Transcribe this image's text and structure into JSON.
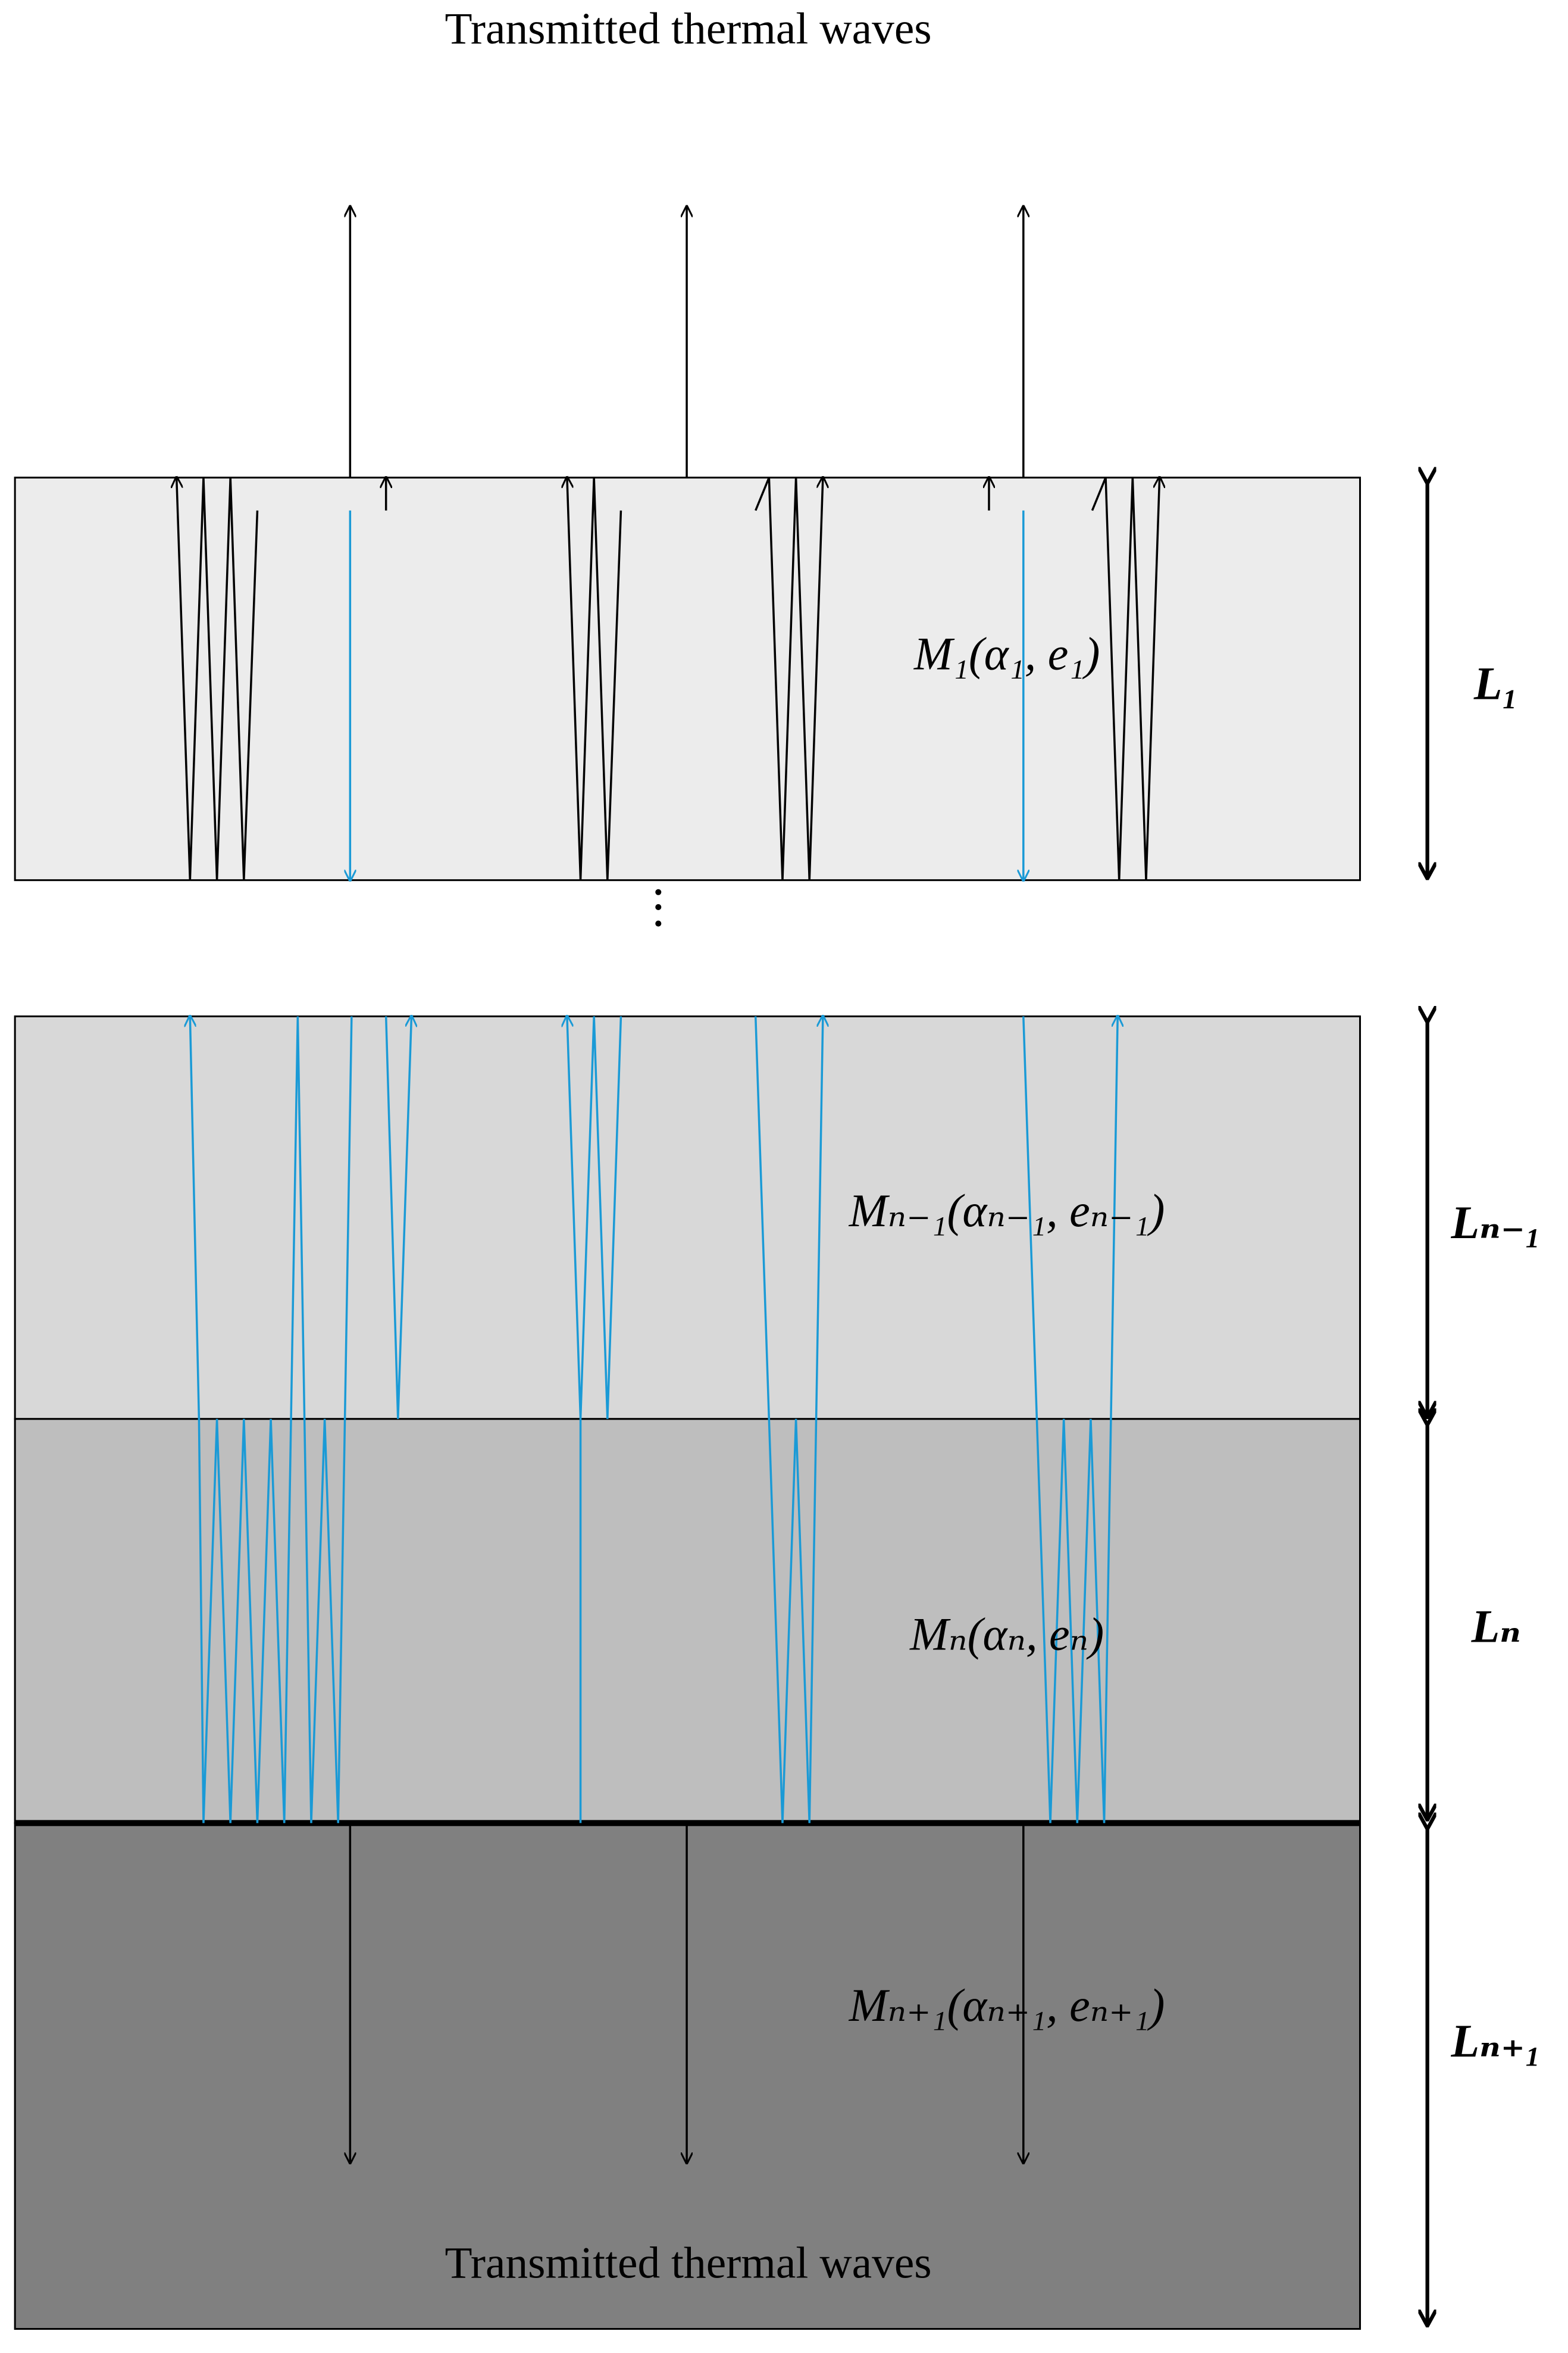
{
  "diagram": {
    "top_caption": "Transmitted thermal waves",
    "bottom_caption": "Transmitted thermal waves",
    "layers": [
      {
        "label": "M₁(α₁, e₁)",
        "thickness": "L₁"
      },
      {
        "label": "Mₙ₋₁(αₙ₋₁, eₙ₋₁)",
        "thickness": "Lₙ₋₁"
      },
      {
        "label": "Mₙ(αₙ, eₙ)",
        "thickness": "Lₙ"
      },
      {
        "label": "Mₙ₊₁(αₙ₊₁, eₙ₊₁)",
        "thickness": "Lₙ₊₁"
      }
    ]
  }
}
